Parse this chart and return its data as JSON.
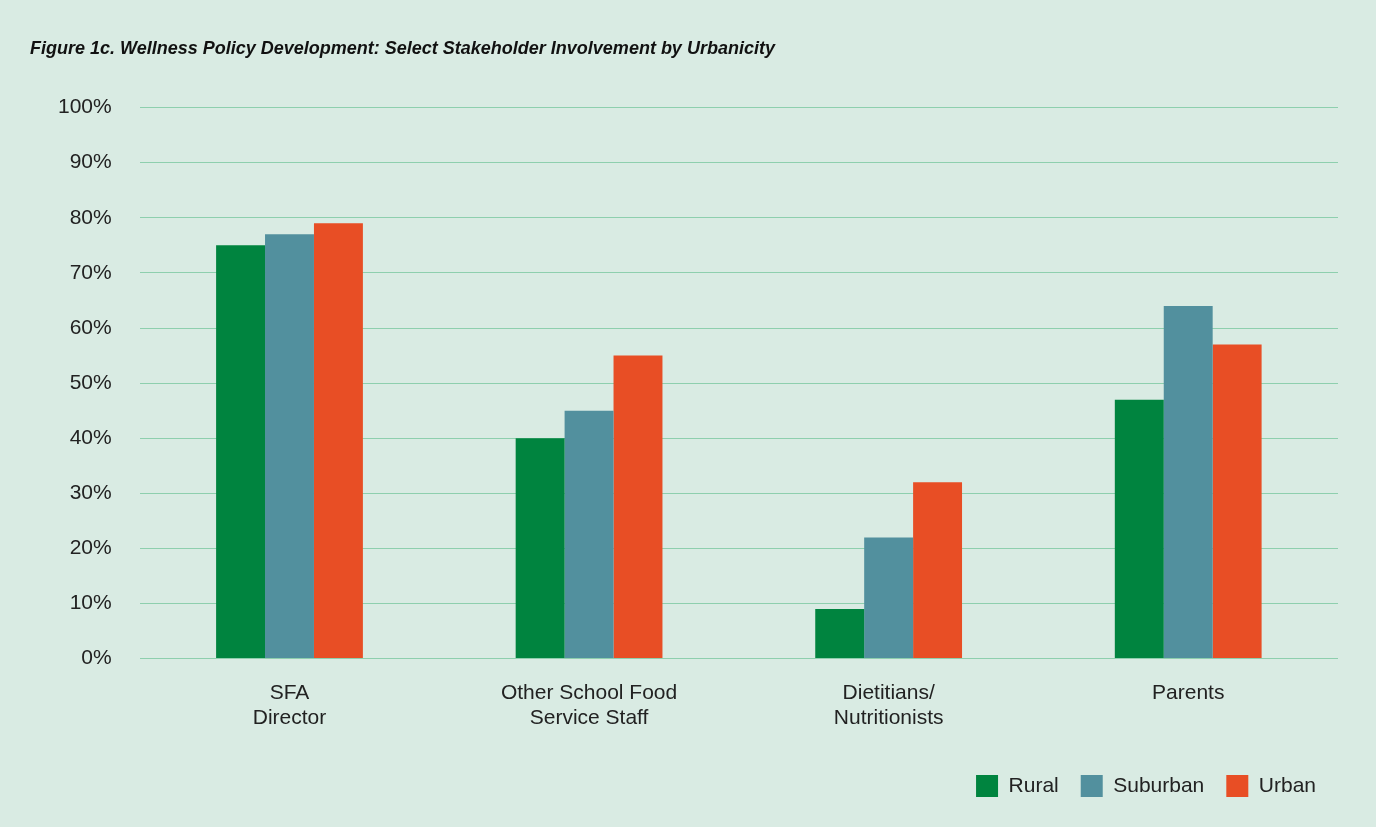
{
  "chart_data": {
    "type": "bar",
    "title": "Figure 1c. Wellness Policy Development: Select Stakeholder Involvement by Urbanicity",
    "categories": [
      "SFA\nDirector",
      "Other School Food\nService Staff",
      "Dietitians/\nNutritionists",
      "Parents"
    ],
    "series": [
      {
        "name": "Rural",
        "color": "#00843f",
        "values": [
          75,
          40,
          9,
          47
        ]
      },
      {
        "name": "Suburban",
        "color": "#52909e",
        "values": [
          77,
          45,
          22,
          64
        ]
      },
      {
        "name": "Urban",
        "color": "#e84e25",
        "values": [
          79,
          55,
          32,
          57
        ]
      }
    ],
    "ylim": [
      0,
      100
    ],
    "yticks": [
      {
        "value": 0,
        "label": "0%"
      },
      {
        "value": 10,
        "label": "10%"
      },
      {
        "value": 20,
        "label": "20%"
      },
      {
        "value": 30,
        "label": "30%"
      },
      {
        "value": 40,
        "label": "40%"
      },
      {
        "value": 50,
        "label": "50%"
      },
      {
        "value": 60,
        "label": "60%"
      },
      {
        "value": 70,
        "label": "70%"
      },
      {
        "value": 80,
        "label": "80%"
      },
      {
        "value": 90,
        "label": "90%"
      },
      {
        "value": 100,
        "label": "100%"
      }
    ],
    "grid": "y",
    "legend": "bottom right"
  }
}
